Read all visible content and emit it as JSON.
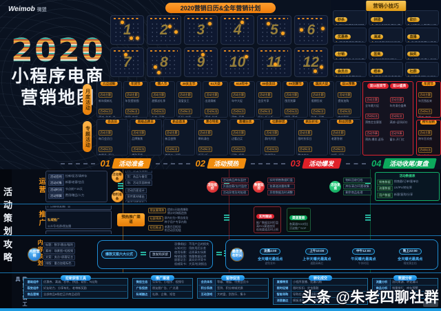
{
  "brand": {
    "name": "Weimob",
    "cn": "微盟"
  },
  "hero": {
    "year": "2020",
    "line1": "小程序电商",
    "line2": "营销地图"
  },
  "calendar": {
    "banner": "2020营销日历&全年营销计划",
    "months": [
      {
        "n": "1",
        "dots": [
          [
            30,
            16
          ],
          [
            58,
            72
          ],
          [
            76,
            72
          ]
        ]
      },
      {
        "n": "2",
        "dots": [
          [
            62,
            32
          ],
          [
            82,
            52
          ]
        ]
      },
      {
        "n": "3",
        "dots": [
          [
            72,
            22
          ]
        ]
      },
      {
        "n": "4",
        "dots": [
          [
            60,
            18
          ]
        ]
      },
      {
        "n": "5",
        "dots": [
          [
            26,
            22
          ],
          [
            72,
            56
          ]
        ]
      },
      {
        "n": "6",
        "dots": [
          [
            16,
            44
          ],
          [
            80,
            38
          ]
        ]
      },
      {
        "n": "7",
        "dots": [
          [
            40,
            16
          ]
        ]
      },
      {
        "n": "8",
        "dots": [
          [
            18,
            62
          ],
          [
            28,
            80
          ]
        ]
      },
      {
        "n": "9",
        "dots": [
          [
            52,
            18
          ]
        ]
      },
      {
        "n": "10",
        "dots": [
          [
            72,
            24
          ]
        ]
      },
      {
        "n": "11",
        "dots": [
          [
            48,
            52
          ]
        ]
      },
      {
        "n": "12",
        "dots": [
          [
            58,
            76
          ],
          [
            76,
            62
          ]
        ]
      }
    ]
  },
  "tips": {
    "badge": "营销小技巧",
    "cards": [
      {
        "label": "秒杀",
        "lines": [
          "限时限量制造稀缺感",
          "配合Push提前预告蓄水"
        ]
      },
      {
        "label": "拼团",
        "lines": [
          "低价引流款带动成团",
          "老带新裂变扩大客群"
        ]
      },
      {
        "label": "砍价",
        "lines": [
          "好友助力裂变拉新",
          "设置底价防止亏损"
        ]
      },
      {
        "label": "优惠券",
        "lines": [
          "满减券提升客单价",
          "到期提醒促进转化"
        ]
      },
      {
        "label": "满减",
        "lines": [
          "阶梯满减引导凑单",
          "搭配包邮门槛使用"
        ]
      },
      {
        "label": "直播",
        "lines": [
          "直播间专属价逼单",
          "预告+福袋留住用户"
        ]
      },
      {
        "label": "分销",
        "lines": [
          "佣金激励全员推广",
          "统一输出推广素材"
        ]
      },
      {
        "label": "签到",
        "lines": [
          "连续签到送积分",
          "培养用户访问习惯"
        ]
      },
      {
        "label": "抽奖",
        "lines": [
          "大转盘低成本引流",
          "奖品设置拉开梯度"
        ]
      },
      {
        "label": "会员日",
        "lines": [
          "会员日专属折扣",
          "积分兑换促进复购"
        ]
      },
      {
        "label": "晒单",
        "lines": [
          "晒单返现二次传播",
          "优质UGC沉淀素材"
        ]
      },
      {
        "label": "社群",
        "lines": [
          "群内快闪秒杀活动",
          "KOC带动群内气氛"
        ]
      }
    ]
  },
  "band": {
    "row1_label": "月度活动",
    "row2_label": "专题活动",
    "monthly": [
      {
        "title": "元旦迎新",
        "rows": [
          {
            "b": "活动主题",
            "t": "新年焕新礼"
          },
          {
            "b": "活动玩法",
            "t": "满减+秒杀+券"
          }
        ]
      },
      {
        "title": "年货节",
        "rows": [
          {
            "b": "活动主题",
            "t": "年货提前囤"
          },
          {
            "b": "活动玩法",
            "t": "拼团+包邮"
          }
        ]
      },
      {
        "title": "情人节",
        "rows": [
          {
            "b": "活动主题",
            "t": "甜蜜送礼季"
          },
          {
            "b": "活动玩法",
            "t": "礼盒+买赠"
          }
        ]
      },
      {
        "title": "38女王节",
        "rows": [
          {
            "b": "活动主题",
            "t": "宠爱女王"
          },
          {
            "b": "活动玩法",
            "t": "折扣+抽奖"
          }
        ]
      },
      {
        "title": "51大促",
        "rows": [
          {
            "b": "活动主题",
            "t": "出游焕新"
          },
          {
            "b": "活动玩法",
            "t": "满减+秒杀"
          }
        ]
      },
      {
        "title": "618年中",
        "rows": [
          {
            "b": "活动主题",
            "t": "年中大促"
          },
          {
            "b": "活动玩法",
            "t": "预售+直播"
          }
        ]
      },
      {
        "title": "88会员日",
        "rows": [
          {
            "b": "活动主题",
            "t": "会员专享"
          },
          {
            "b": "活动玩法",
            "t": "积分+折上折"
          }
        ]
      },
      {
        "title": "99划算节",
        "rows": [
          {
            "b": "活动主题",
            "t": "囤货划算"
          },
          {
            "b": "活动玩法",
            "t": "拼团+满减"
          }
        ]
      },
      {
        "title": "国庆大促",
        "rows": [
          {
            "b": "活动主题",
            "t": "假期狂欢"
          },
          {
            "b": "活动玩法",
            "t": "秒杀+买赠"
          }
        ]
      },
      {
        "title": "双11预售",
        "rows": [
          {
            "b": "活动主题",
            "t": "提前加购"
          },
          {
            "b": "活动玩法",
            "t": "定金膨胀"
          }
        ]
      }
    ],
    "special": [
      {
        "title": "会员日",
        "rows": [
          {
            "b": "活动主题",
            "t": "每月会员日"
          },
          {
            "b": "活动玩法",
            "t": "专属券+积分"
          }
        ]
      },
      {
        "title": "超级品牌日",
        "rows": [
          {
            "b": "活动主题",
            "t": "品牌聚焦"
          },
          {
            "b": "活动玩法",
            "t": "爆款直降"
          }
        ]
      },
      {
        "title": "新品首发",
        "rows": [
          {
            "b": "活动主题",
            "t": "新品尝鲜"
          },
          {
            "b": "活动玩法",
            "t": "首发价+试用"
          }
        ]
      },
      {
        "title": "清仓特卖",
        "rows": [
          {
            "b": "活动主题",
            "t": "断码清仓"
          },
          {
            "b": "活动玩法",
            "t": "低至1折"
          }
        ]
      },
      {
        "title": "直播狂欢",
        "rows": [
          {
            "b": "活动主题",
            "t": "边看边买"
          },
          {
            "b": "活动玩法",
            "t": "闪购+福袋"
          }
        ]
      },
      {
        "title": "社群拼团",
        "rows": [
          {
            "b": "活动主题",
            "t": "群内开团"
          },
          {
            "b": "活动玩法",
            "t": "阶梯团价"
          }
        ]
      },
      {
        "title": "疯狂折扣",
        "rows": [
          {
            "b": "活动主题",
            "t": "限时折扣日"
          },
          {
            "b": "活动玩法",
            "t": "整点放价"
          }
        ]
      },
      {
        "title": "粉丝回馈",
        "rows": [
          {
            "b": "活动主题",
            "t": "老客答谢"
          },
          {
            "b": "活动玩法",
            "t": "抽奖+返现"
          }
        ]
      }
    ],
    "promo": {
      "titles": [
        "双11狂欢节",
        "双12盛典"
      ],
      "cols": [
        {
          "rows": [
            {
              "b": "活动主题",
              "t": "全年最大促"
            },
            {
              "b": "活动玩法",
              "t": "预售定金膨胀"
            },
            {
              "b": "活动节奏",
              "t": "预热-爆发-返场"
            }
          ]
        },
        {
          "rows": [
            {
              "b": "活动主题",
              "t": "年终清仓盛典"
            },
            {
              "b": "活动玩法",
              "t": "满减+返场好价"
            },
            {
              "b": "活动节奏",
              "t": "蓄水-开门红"
            }
          ]
        }
      ]
    },
    "right_cards": [
      {
        "title": "年货节",
        "rows": [
          {
            "b": "活动主题",
            "t": "年货囤起来"
          },
          {
            "b": "活动玩法",
            "t": "满减+包邮"
          }
        ]
      },
      {
        "title": "跨年迎新",
        "rows": [
          {
            "b": "活动主题",
            "t": "跨年狂欢夜"
          },
          {
            "b": "活动玩法",
            "t": "整点秒杀"
          }
        ]
      }
    ]
  },
  "phases": [
    {
      "num": "01",
      "label": "活动准备",
      "cls": "p1"
    },
    {
      "num": "02",
      "label": "活动预热",
      "cls": "p2"
    },
    {
      "num": "03",
      "label": "活动爆发",
      "cls": "p3"
    },
    {
      "num": "04",
      "label": "活动收尾/复盘",
      "cls": "p4"
    }
  ],
  "strategy": {
    "side": "活动策划攻略",
    "ops": {
      "label": "运营",
      "brief": [
        {
          "k": "活动目的",
          "v": "拉新/促活/清库存"
        },
        {
          "k": "活动对象",
          "v": "新客/老客/会员"
        },
        {
          "k": "活动时间",
          "v": "节点前7-15天"
        },
        {
          "k": "活动预算",
          "v": "费用/赠品/人力"
        }
      ],
      "prep": [
        {
          "c": "活动筹备",
          "lines": [
            "人：分工与排期",
            "货：选品与备货",
            "场：活动页面装修"
          ]
        },
        {
          "c": "物料准备",
          "lines": [
            "活动页面设计",
            "宣传素材输出",
            "商品详情优化"
          ]
        }
      ],
      "watch": [
        {
          "c": "活动监控",
          "lines": [
            "活动商品库存监控",
            "页面加载/支付监控",
            "活动异常及时处理"
          ]
        },
        {
          "c": "数据监控",
          "lines": [
            "实时销售数据盯盘",
            "各渠道流量效果",
            "异常数据及时调整"
          ]
        }
      ],
      "review": {
        "c": "活动复盘",
        "lines": [
          "物料回收归档",
          "库存清点/问题收集",
          "剩余商品处理"
        ]
      },
      "table": {
        "title": "活动数据表",
        "rows": [
          {
            "k": "销售数据",
            "v": "销售额/订单/客单价"
          },
          {
            "k": "流量数据",
            "v": "UV/PV/转化率"
          },
          {
            "k": "用户数据",
            "v": "新客/复购/分享"
          }
        ]
      }
    },
    "spread": {
      "label": "推广",
      "channels": [
        {
          "k": "公域推广",
          "v": "广点通/朋友圈广告"
        },
        {
          "k": "私域推广",
          "v": "公众号/社群/朋友圈"
        },
        {
          "k": "线下推广",
          "v": "门店物料/DM单页"
        }
      ],
      "hub": "预热推广渠道",
      "branches": [
        {
          "k": "朋友圈预热",
          "lines": [
            "提前3天剧透爆款",
            "倒计时海报造势"
          ]
        },
        {
          "k": "社群预热",
          "lines": [
            "群内红包+预告接龙",
            "种子用户专享内购"
          ]
        },
        {
          "k": "短信推送",
          "lines": [
            "老客召回短信",
            "附活动页短链"
          ]
        }
      ],
      "live": {
        "k": "实时跟进",
        "lines": [
          "推广数据实时盯盘",
          "高ROI渠道加投",
          "低效渠道及时止损"
        ]
      },
      "recap": {
        "k": "渠道复盘",
        "lines": [
          "各渠道ROI对比",
          "沉淀推广SOP"
        ]
      }
    },
    "content": {
      "label": "内容策划",
      "center": "内容营销",
      "branches": [
        "标题：数字/悬念/福利",
        "素材：场景图+短视频",
        "文案：卖点+顾客证言",
        "排版：重点加粗标色"
      ],
      "formula": {
        "pill": "爆款文案六大公式",
        "mid": "激发购买欲",
        "lines": [
          "恐惧唤起：不用产品的损失",
          "认知对比：用前用后反差",
          "使用场景：还原真实场景",
          "畅销氛围：销量数据证明",
          "顾客证言：真实好评背书",
          "权威背书：大奖/检测报告"
        ]
      },
      "times": {
        "c": "最佳发布时间",
        "items": [
          {
            "pill": "凌晨4:00",
            "main": "全天曝光最低点",
            "sub": "避免发布"
          },
          {
            "pill": "上午10:00",
            "main": "上半天曝光最高点",
            "sub": "通勤高峰后"
          },
          {
            "pill": "中午12:00",
            "main": "午间曝光最高点",
            "sub": "午休时段"
          },
          {
            "pill": "晚上22:00",
            "main": "全天曝光最高点",
            "sub": "睡前黄金档"
          }
        ]
      }
    },
    "tools": {
      "label": "微盟营销工具",
      "tables": [
        {
          "cls": "tw1",
          "title": "拉新获客工具",
          "rows": [
            {
              "k": "基础组件",
              "v": "优惠券、满减、秒杀、拼团、砍价、N元购"
            },
            {
              "k": "裂变组件",
              "v": "好友助力、分享有礼、老带新奖励"
            },
            {
              "k": "商品营销",
              "v": "全部商品&指定正价商品适用"
            }
          ]
        },
        {
          "cls": "tw2",
          "title": "推广渠道",
          "rows": [
            {
              "k": "微信生态",
              "v": "公众号、小程序、视频号"
            },
            {
              "k": "广告投放",
              "v": "朋友圈广告、广点通"
            },
            {
              "k": "私域触达",
              "v": "社群、企微、短信"
            }
          ]
        },
        {
          "cls": "tw3",
          "title": "留存促活",
          "rows": [
            {
              "k": "会员体系",
              "v": "等级、储值、付费会员卡"
            },
            {
              "k": "积分系统",
              "v": "签到、积分商城兑换"
            },
            {
              "k": "互动游戏",
              "v": "大转盘、刮刮乐、集卡"
            }
          ]
        },
        {
          "cls": "tw4",
          "title": "转化成交",
          "rows": [
            {
              "k": "直播带货",
              "v": "小程序直播、优惠闪购"
            },
            {
              "k": "限时促销",
              "v": "限时折扣、定金膨胀"
            },
            {
              "k": "智能导购",
              "v": "导购任务、专属客服"
            },
            {
              "k": "消息触达",
              "v": "模板消息、订阅提醒"
            }
          ]
        },
        {
          "cls": "tw5",
          "title": "数据分析",
          "rows": [
            {
              "k": "流量分析",
              "v": "访问来源、转化漏斗"
            },
            {
              "k": "商品分析",
              "v": "销量排行、库存预警"
            },
            {
              "k": "客户分析",
              "v": "RFM分层、复购分析"
            }
          ]
        }
      ]
    }
  },
  "watermark": "头条 @朱老四聊社群"
}
